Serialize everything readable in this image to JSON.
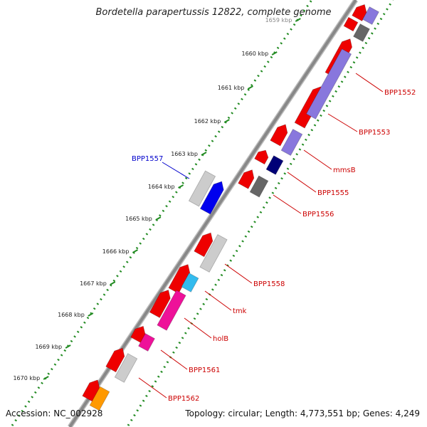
{
  "title": "Bordetella parapertussis 12822, complete genome",
  "footer": {
    "accession": "Accession: NC_002928",
    "summary": "Topology: circular; Length: 4,773,551 bp; Genes: 4,249"
  },
  "ticks": [
    "1659 kbp",
    "1660 kbp",
    "1661 kbp",
    "1662 kbp",
    "1663 kbp",
    "1664 kbp",
    "1665 kbp",
    "1666 kbp",
    "1667 kbp",
    "1668 kbp",
    "1669 kbp",
    "1670 kbp"
  ],
  "gene_labels": [
    {
      "name": "BPP1552",
      "color": "#cc0000"
    },
    {
      "name": "BPP1553",
      "color": "#cc0000"
    },
    {
      "name": "mmsB",
      "color": "#cc0000"
    },
    {
      "name": "BPP1555",
      "color": "#cc0000"
    },
    {
      "name": "BPP1556",
      "color": "#cc0000"
    },
    {
      "name": "BPP1557",
      "color": "#0000cc"
    },
    {
      "name": "BPP1558",
      "color": "#cc0000"
    },
    {
      "name": "tmk",
      "color": "#cc0000"
    },
    {
      "name": "holB",
      "color": "#cc0000"
    },
    {
      "name": "BPP1561",
      "color": "#cc0000"
    },
    {
      "name": "BPP1562",
      "color": "#cc0000"
    }
  ],
  "colors": {
    "backbone": "#888888",
    "tick": "#228b22",
    "cds_forward": "#ee0000",
    "cds_blue": "#0000ee",
    "gene_grey": "#cccccc",
    "gene_dark_grey": "#666666",
    "gene_purple": "#8877dd",
    "gene_navy": "#000077",
    "gene_cyan": "#33bbee",
    "gene_magenta": "#ee1199",
    "gene_orange": "#ff9900"
  }
}
